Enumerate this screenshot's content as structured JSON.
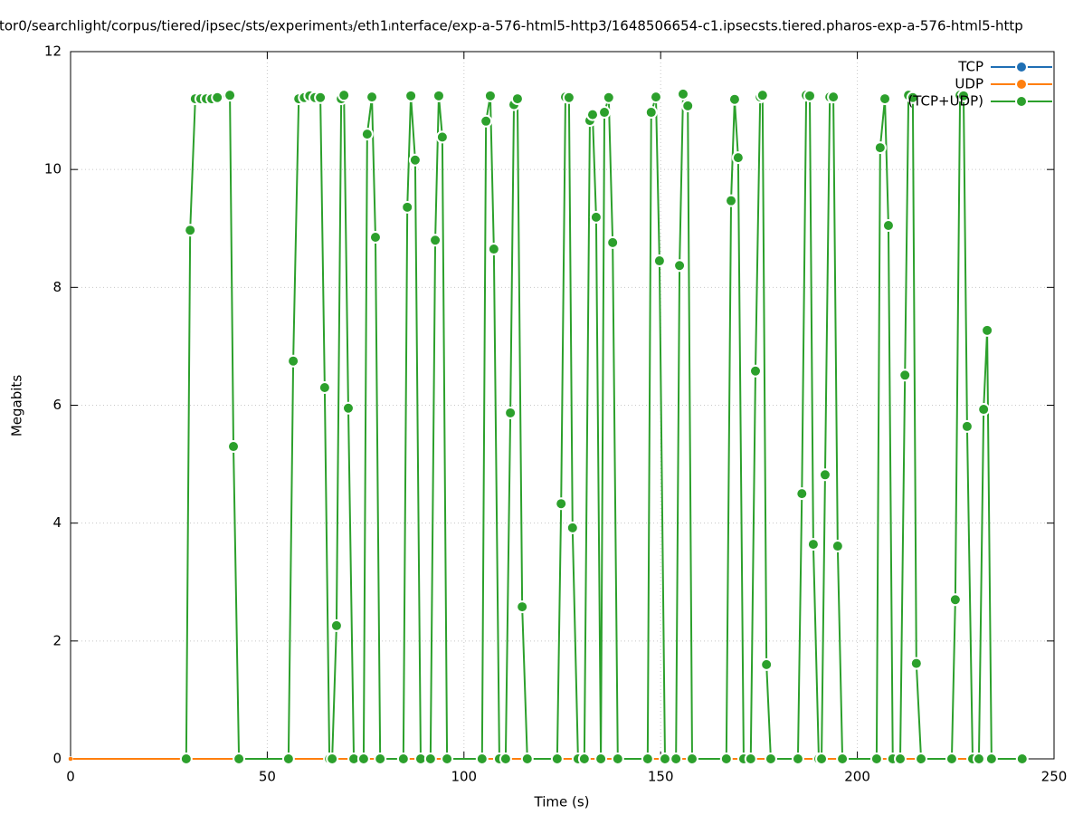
{
  "chart_data": {
    "type": "line",
    "title": "tor0/searchlight/corpus/tiered/ipsec/sts/experiment₃/eth1ᵢnterface/exp-a-576-html5-http3/1648506654-c1.ipsecsts.tiered.pharos-exp-a-576-html5-http",
    "x_label": "Time (s)",
    "y_label": "Megabits",
    "xlim": [
      0,
      250
    ],
    "xticks": [
      0,
      50,
      100,
      150,
      200,
      250
    ],
    "ylim": [
      0,
      12
    ],
    "yticks": [
      0,
      2,
      4,
      6,
      8,
      10,
      12
    ],
    "grid": true,
    "legend": "top-right",
    "series": [
      {
        "name": "TCP",
        "color": "#1f6fb4",
        "x": [
          0,
          241.9
        ],
        "values": [
          0,
          0
        ]
      },
      {
        "name": "UDP",
        "color": "#ff7f0e",
        "x": [
          0,
          241.9
        ],
        "values": [
          0,
          0
        ]
      },
      {
        "name": "(TCP+UDP)",
        "color": "#2ca02c",
        "x": [
          29.4,
          30.4,
          31.7,
          33.1,
          34.5,
          35.9,
          37.3,
          40.5,
          41.4,
          42.8,
          55.4,
          56.6,
          58,
          59.4,
          60.8,
          62.1,
          63.5,
          64.6,
          65.8,
          66.5,
          67.6,
          68.8,
          69.5,
          70.6,
          72,
          74.5,
          75.4,
          76.6,
          77.5,
          78.7,
          84.6,
          85.6,
          86.5,
          87.6,
          89,
          91.5,
          92.7,
          93.6,
          94.5,
          95.7,
          104.6,
          105.6,
          106.7,
          107.6,
          109,
          110.6,
          111.8,
          112.7,
          113.6,
          114.8,
          116.1,
          123.7,
          124.7,
          125.8,
          126.7,
          127.6,
          129,
          130.6,
          132,
          132.7,
          133.6,
          134.8,
          135.7,
          136.8,
          137.8,
          139.1,
          146.7,
          147.6,
          148.8,
          149.7,
          151.1,
          153.9,
          154.8,
          155.7,
          156.9,
          158,
          166.7,
          167.9,
          168.8,
          169.7,
          171.1,
          172.9,
          174.1,
          175.3,
          175.9,
          176.9,
          178,
          184.9,
          185.9,
          187,
          187.9,
          188.8,
          190.2,
          190.9,
          191.8,
          193,
          193.9,
          195,
          196.2,
          204.9,
          205.8,
          207,
          207.9,
          209,
          210.9,
          212.1,
          213,
          214.1,
          215,
          216.2,
          224,
          224.9,
          226.1,
          227,
          227.9,
          229.3,
          230.9,
          232.1,
          233,
          234.1,
          241.9
        ],
        "values": [
          0,
          8.97,
          11.2,
          11.2,
          11.2,
          11.2,
          11.22,
          11.26,
          5.3,
          0,
          0,
          6.75,
          11.2,
          11.22,
          11.25,
          11.22,
          11.22,
          6.3,
          0,
          0,
          2.26,
          11.2,
          11.26,
          5.95,
          0,
          0,
          10.6,
          11.23,
          8.85,
          0,
          0,
          9.36,
          11.25,
          10.16,
          0,
          0,
          8.8,
          11.25,
          10.55,
          0,
          0,
          10.82,
          11.25,
          8.65,
          0,
          0,
          5.87,
          11.1,
          11.2,
          2.58,
          0,
          0,
          4.33,
          11.23,
          11.22,
          3.92,
          0,
          0,
          10.83,
          10.93,
          9.19,
          0,
          10.97,
          11.22,
          8.76,
          0,
          0,
          10.97,
          11.23,
          8.45,
          0,
          0,
          8.37,
          11.28,
          11.08,
          0,
          0,
          9.47,
          11.19,
          10.2,
          0,
          0,
          6.58,
          11.23,
          11.26,
          1.6,
          0,
          0,
          4.5,
          11.26,
          11.25,
          3.64,
          0,
          0,
          4.82,
          11.23,
          11.23,
          3.61,
          0,
          0,
          10.37,
          11.2,
          9.05,
          0,
          0,
          6.51,
          11.26,
          11.22,
          1.62,
          0,
          0,
          2.7,
          11.26,
          11.25,
          5.64,
          0,
          0,
          5.93,
          7.27,
          0,
          0
        ]
      }
    ]
  }
}
